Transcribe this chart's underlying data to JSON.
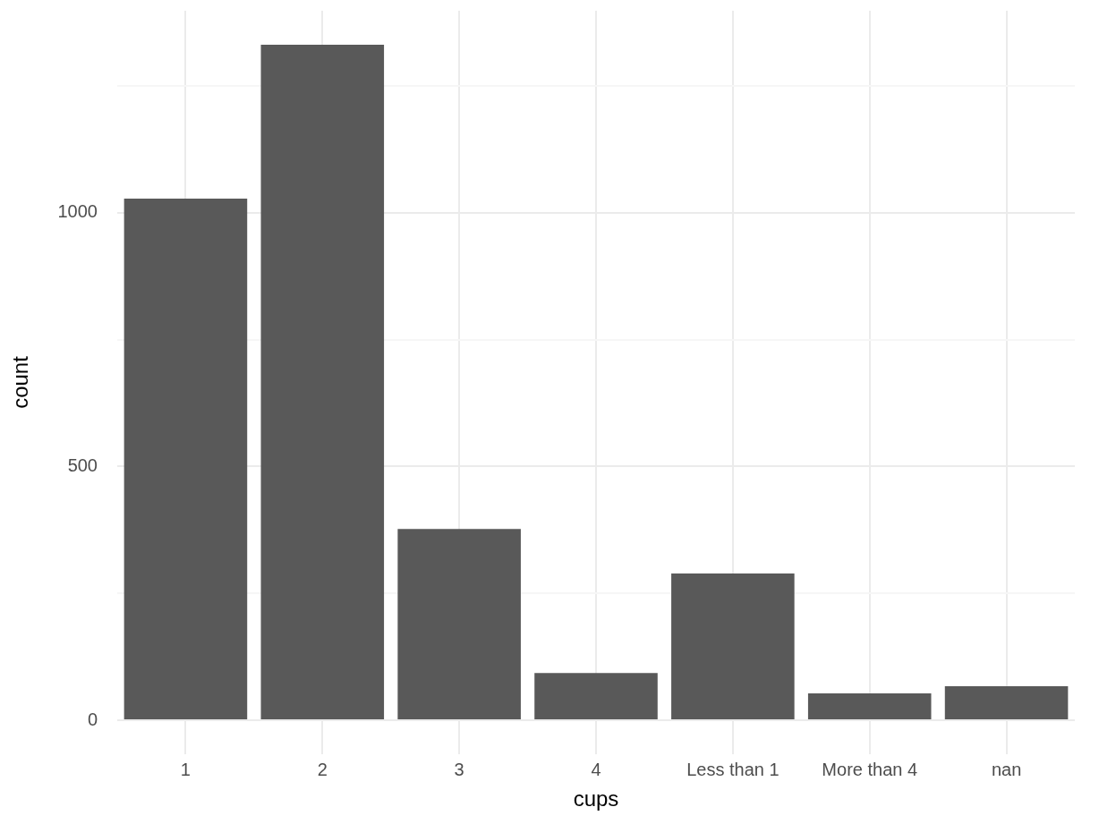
{
  "chart_data": {
    "type": "bar",
    "xlabel": "cups",
    "ylabel": "count",
    "categories": [
      "1",
      "2",
      "3",
      "4",
      "Less than 1",
      "More than 4",
      "nan"
    ],
    "values": [
      1028,
      1331,
      377,
      93,
      289,
      53,
      67
    ],
    "color": "#595959",
    "ylim": [
      -67,
      1398
    ],
    "yticks": [
      0,
      {
        "value": 250,
        "label": null
      },
      500,
      {
        "value": 750,
        "label": null
      },
      1000,
      {
        "value": 1250,
        "label": null
      }
    ],
    "grid": true
  }
}
